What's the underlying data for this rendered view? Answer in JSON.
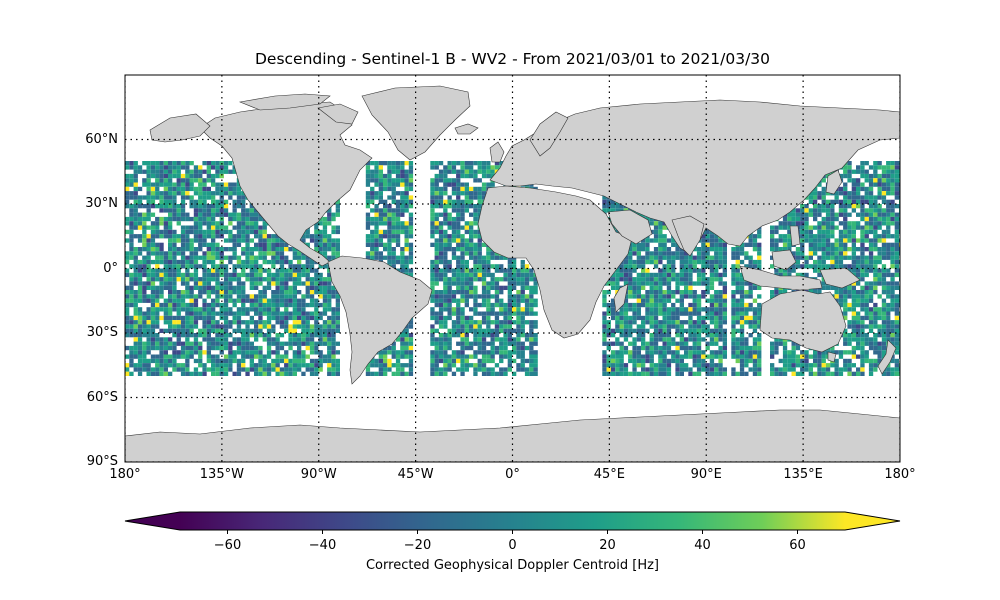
{
  "title": "Descending - Sentinel-1 B - WV2 - From 2021/03/01 to 2021/03/30",
  "map": {
    "projection": "PlateCarree",
    "extent": {
      "lon": [
        -180,
        180
      ],
      "lat": [
        -90,
        90
      ]
    },
    "gridlines": "dotted",
    "land_color": "#d0d0d0",
    "coastline_color": "#333333",
    "lat_ticks": [
      {
        "value": 60,
        "label": "60°N"
      },
      {
        "value": 30,
        "label": "30°N"
      },
      {
        "value": 0,
        "label": "0°"
      },
      {
        "value": -30,
        "label": "30°S"
      },
      {
        "value": -60,
        "label": "60°S"
      },
      {
        "value": -90,
        "label": "90°S"
      }
    ],
    "lon_ticks": [
      {
        "value": -180,
        "label": "180°"
      },
      {
        "value": -135,
        "label": "135°W"
      },
      {
        "value": -90,
        "label": "90°W"
      },
      {
        "value": -45,
        "label": "45°W"
      },
      {
        "value": 0,
        "label": "0°"
      },
      {
        "value": 45,
        "label": "45°E"
      },
      {
        "value": 90,
        "label": "90°E"
      },
      {
        "value": 135,
        "label": "135°E"
      },
      {
        "value": 180,
        "label": "180°"
      }
    ],
    "data_lat_range": [
      -50,
      50
    ]
  },
  "colorbar": {
    "label": "Corrected Geophysical Doppler Centroid [Hz]",
    "colormap": "viridis",
    "range": [
      -70,
      70
    ],
    "extend": "both",
    "ticks": [
      {
        "value": -60,
        "label": "−60"
      },
      {
        "value": -40,
        "label": "−40"
      },
      {
        "value": -20,
        "label": "−20"
      },
      {
        "value": 0,
        "label": "0"
      },
      {
        "value": 20,
        "label": "20"
      },
      {
        "value": 40,
        "label": "40"
      },
      {
        "value": 60,
        "label": "60"
      }
    ]
  }
}
